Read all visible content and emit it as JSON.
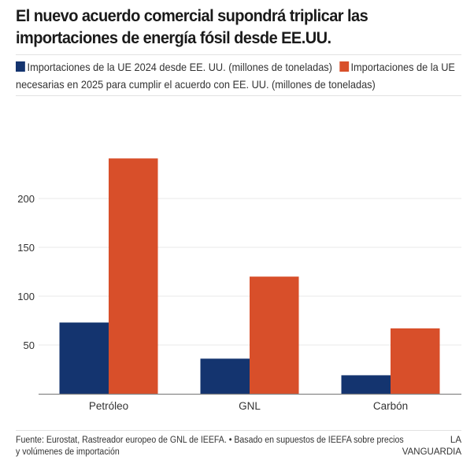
{
  "title": "El nuevo acuerdo comercial supondrá triplicar las importaciones de energía fósil desde EE.UU.",
  "legend": [
    {
      "label": "Importaciones de la UE 2024 desde EE. UU. (millones de toneladas)",
      "color": "#14346f"
    },
    {
      "label": "Importaciones de la UE necesarias en 2025 para cumplir el acuerdo con EE. UU. (millones de toneladas)",
      "color": "#d84f2a"
    }
  ],
  "footer": {
    "source": "Fuente: Eurostat, Rastreador europeo de GNL de IEEFA. • Basado en supuestos de IEEFA sobre precios y volúmenes de importación",
    "brand_line1": "LA",
    "brand_line2": "VANGUARDIA"
  },
  "chart_data": {
    "type": "bar",
    "title": "El nuevo acuerdo comercial supondrá triplicar las importaciones de energía fósil desde EE.UU.",
    "xlabel": "",
    "ylabel": "",
    "categories": [
      "Petróleo",
      "GNL",
      "Carbón"
    ],
    "series": [
      {
        "name": "Importaciones de la UE 2024 desde EE. UU. (millones de toneladas)",
        "color": "#14346f",
        "values": [
          73,
          36,
          19
        ]
      },
      {
        "name": "Importaciones de la UE necesarias en 2025 para cumplir el acuerdo con EE. UU. (millones de toneladas)",
        "color": "#d84f2a",
        "values": [
          241,
          120,
          67
        ]
      }
    ],
    "yticks": [
      50,
      100,
      150,
      200
    ],
    "ylim": [
      0,
      250
    ],
    "grid": true,
    "legend_position": "top"
  }
}
